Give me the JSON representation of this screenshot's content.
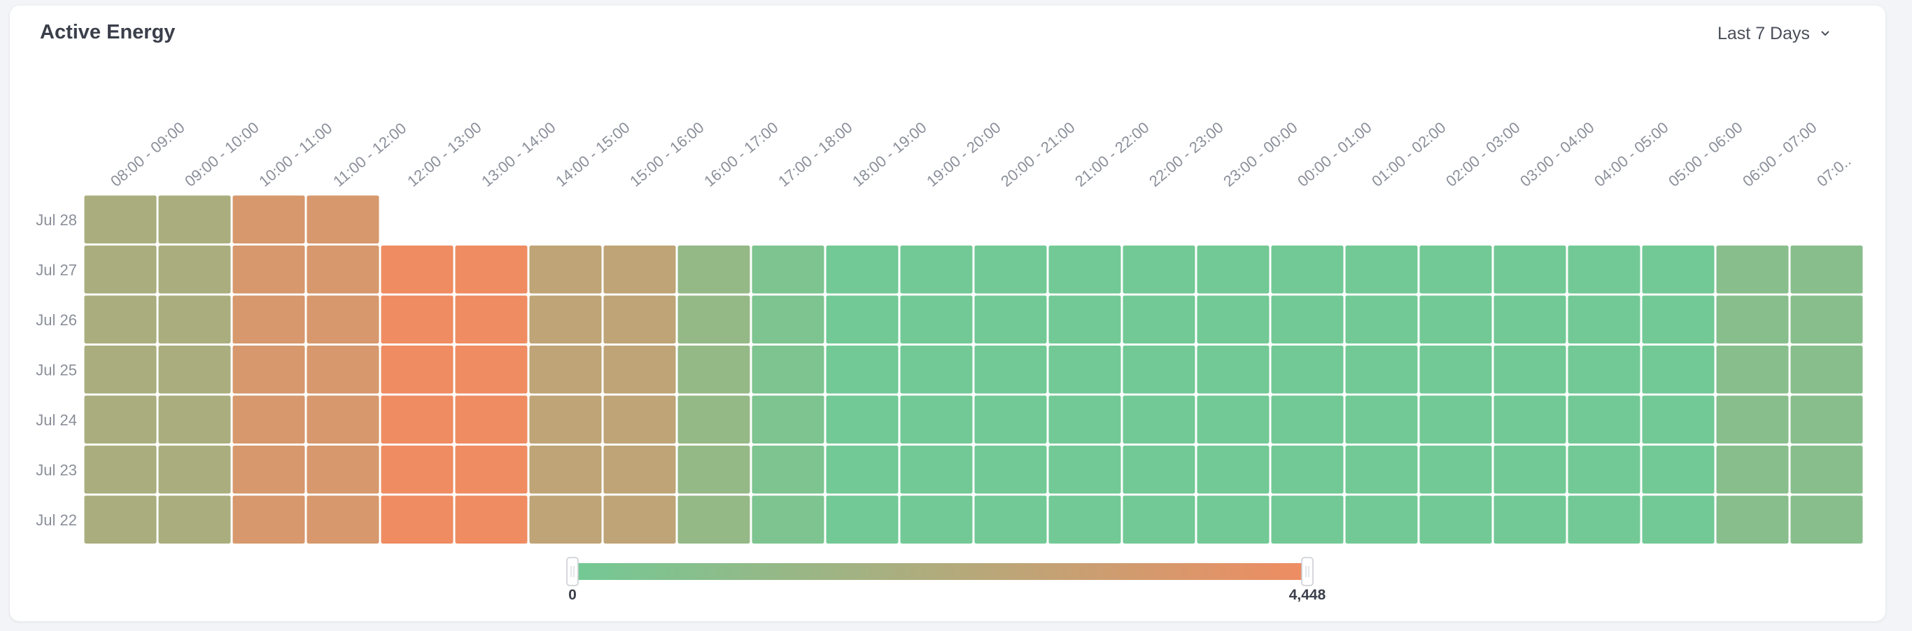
{
  "header": {
    "title": "Active Energy",
    "range_label": "Last 7 Days"
  },
  "icons": {
    "range_chevron": "chevron-down-icon"
  },
  "colors": {
    "low": "#72c995",
    "high": "#ef8c62",
    "cell_border": "#ffffff"
  },
  "chart_data": {
    "type": "heatmap",
    "x": [
      "08:00 - 09:00",
      "09:00 - 10:00",
      "10:00 - 11:00",
      "11:00 - 12:00",
      "12:00 - 13:00",
      "13:00 - 14:00",
      "14:00 - 15:00",
      "15:00 - 16:00",
      "16:00 - 17:00",
      "17:00 - 18:00",
      "18:00 - 19:00",
      "19:00 - 20:00",
      "20:00 - 21:00",
      "21:00 - 22:00",
      "22:00 - 23:00",
      "23:00 - 00:00",
      "00:00 - 01:00",
      "01:00 - 02:00",
      "02:00 - 03:00",
      "03:00 - 04:00",
      "04:00 - 05:00",
      "05:00 - 06:00",
      "06:00 - 07:00",
      "07:0.."
    ],
    "y": [
      "Jul 28",
      "Jul 27",
      "Jul 26",
      "Jul 25",
      "Jul 24",
      "Jul 23",
      "Jul 22"
    ],
    "values": [
      [
        2000,
        2000,
        3550,
        3550,
        null,
        null,
        null,
        null,
        null,
        null,
        null,
        null,
        null,
        null,
        null,
        null,
        null,
        null,
        null,
        null,
        null,
        null,
        null,
        null
      ],
      [
        2000,
        2000,
        3550,
        3550,
        4448,
        4448,
        2700,
        2700,
        1200,
        400,
        0,
        0,
        0,
        0,
        0,
        0,
        0,
        0,
        0,
        0,
        0,
        0,
        800,
        800
      ],
      [
        2000,
        2000,
        3550,
        3550,
        4448,
        4448,
        2700,
        2700,
        1200,
        400,
        0,
        0,
        0,
        0,
        0,
        0,
        0,
        0,
        0,
        0,
        0,
        0,
        800,
        800
      ],
      [
        2000,
        2000,
        3550,
        3550,
        4448,
        4448,
        2700,
        2700,
        1200,
        400,
        0,
        0,
        0,
        0,
        0,
        0,
        0,
        0,
        0,
        0,
        0,
        0,
        800,
        800
      ],
      [
        2000,
        2000,
        3550,
        3550,
        4448,
        4448,
        2700,
        2700,
        1200,
        400,
        0,
        0,
        0,
        0,
        0,
        0,
        0,
        0,
        0,
        0,
        0,
        0,
        800,
        800
      ],
      [
        2000,
        2000,
        3550,
        3550,
        4448,
        4448,
        2700,
        2700,
        1200,
        400,
        0,
        0,
        0,
        0,
        0,
        0,
        0,
        0,
        0,
        0,
        0,
        0,
        800,
        800
      ],
      [
        2000,
        2000,
        3550,
        3550,
        4448,
        4448,
        2700,
        2700,
        1200,
        400,
        0,
        0,
        0,
        0,
        0,
        0,
        0,
        0,
        0,
        0,
        0,
        0,
        800,
        800
      ]
    ],
    "min": 0,
    "max": 4448,
    "legend": {
      "min_label": "0",
      "max_label": "4,448",
      "selected_range": [
        0,
        4448
      ]
    }
  }
}
